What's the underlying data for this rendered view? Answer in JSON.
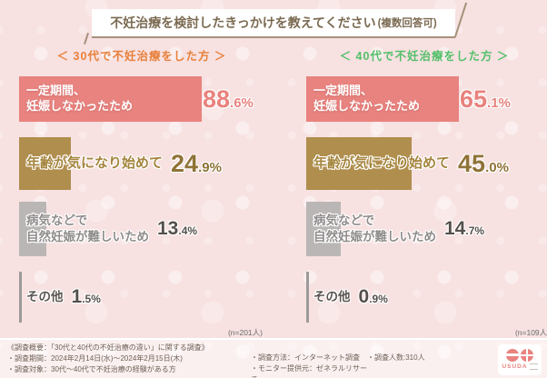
{
  "chart_data": {
    "type": "bar",
    "title": "不妊治療を検討したきっかけを教えてください(複数回答可)",
    "orientation": "horizontal",
    "unit": "%",
    "grid": false,
    "legend_position": "column-headings",
    "categories": [
      "一定期間、妊娠しなかったため",
      "年齢が気になり始めて",
      "病気などで自然妊娠が難しいため",
      "その他"
    ],
    "series": [
      {
        "name": "30代で不妊治療をした方",
        "n": 201,
        "values": [
          88.6,
          24.9,
          13.4,
          1.5
        ]
      },
      {
        "name": "40代で不妊治療をした方",
        "n": 109,
        "values": [
          65.1,
          45.0,
          14.7,
          0.9
        ]
      }
    ],
    "value_labels": [
      [
        "88.6%",
        "24.9%",
        "13.4%",
        "1.5%"
      ],
      [
        "65.1%",
        "45.0%",
        "14.7%",
        "0.9%"
      ]
    ]
  },
  "header": {
    "title_main": "不妊治療を検討したきっかけを教えてください",
    "title_suffix": "(複数回答可)"
  },
  "columns": [
    {
      "heading": "＜ 30代で不妊治療をした方 ＞",
      "n_label": "(n=201人)",
      "accent_color": "#e8803a"
    },
    {
      "heading": "＜ 40代で不妊治療をした方 ＞",
      "n_label": "(n=109人)",
      "accent_color": "#53bf6a"
    }
  ],
  "row_labels_lines": [
    [
      "一定期間、",
      "妊娠しなかったため"
    ],
    [
      "年齢が気になり始めて"
    ],
    [
      "病気などで",
      "自然妊娠が難しいため"
    ],
    [
      "その他"
    ]
  ],
  "colors": {
    "bar_row_colors": [
      "#e8837f",
      "#b08e4e",
      "#bab6b6",
      "#9e9a9a"
    ],
    "value_colors": [
      "#e8827d",
      "#8f7337",
      "#55504d",
      "#55504d"
    ],
    "label_colors": [
      "#ffffff",
      "#a5853e",
      "#908c8c",
      "#5a5551"
    ],
    "background": "#f7e1e1",
    "banner_line": "#a6917a"
  },
  "footer": {
    "left_lines": [
      "《調査概要：「30代と40代の不妊治療の違い」に関する調査》",
      "・調査期間：2024年2月14日(水)～2024年2月15日(木)",
      "・調査対象：30代～40代で不妊治療の経験がある方"
    ],
    "mid_lines": [
      "・調査方法：インターネット調査",
      "・モニター提供元：ゼネラルリサーチ"
    ],
    "right_line": "・調査人数:310人"
  },
  "logo": {
    "name": "USUDA"
  }
}
